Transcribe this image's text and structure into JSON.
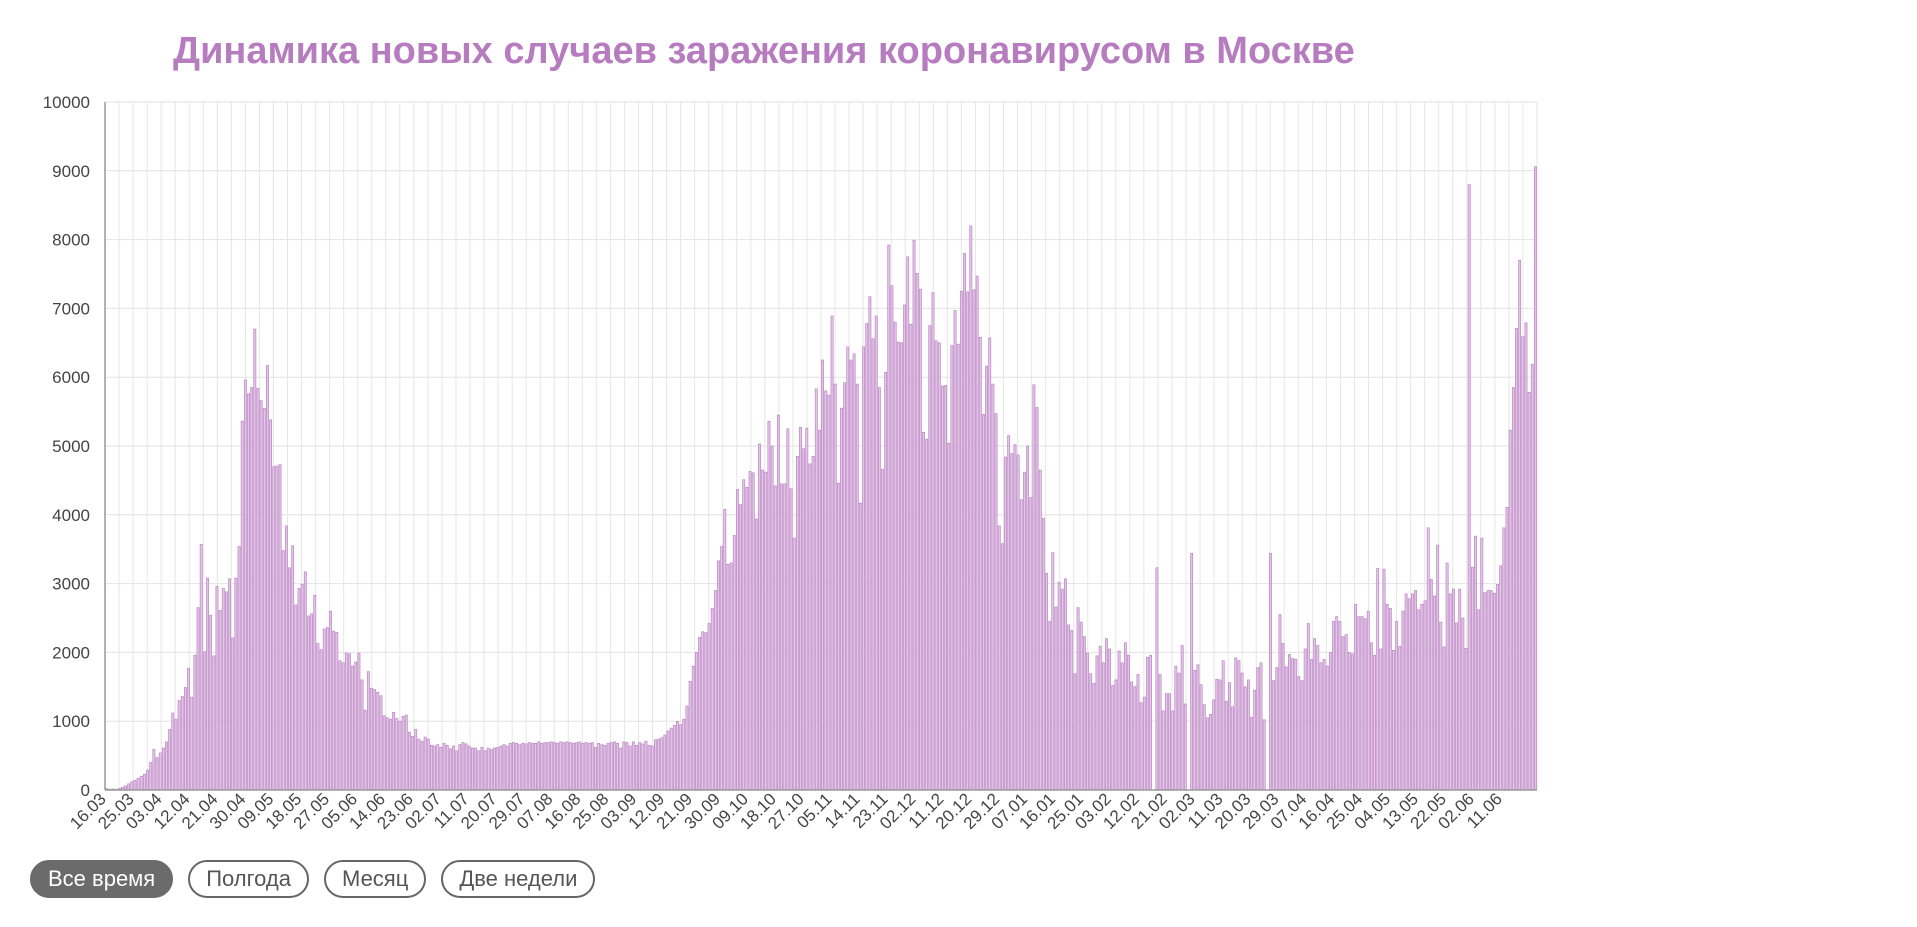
{
  "chart_data": {
    "type": "bar",
    "title": "Динамика новых случаев заражения коронавирусом в Москве",
    "xlabel": "",
    "ylabel": "",
    "ylim": [
      0,
      10000
    ],
    "y_ticks": [
      "0",
      "1000",
      "2000",
      "3000",
      "4000",
      "5000",
      "6000",
      "7000",
      "8000",
      "9000",
      "10000"
    ],
    "grid": true,
    "bar_color": "#b67cbf",
    "x_tick_labels": [
      "16.03",
      "25.03",
      "03.04",
      "12.04",
      "21.04",
      "30.04",
      "09.05",
      "18.05",
      "27.05",
      "05.06",
      "14.06",
      "23.06",
      "02.07",
      "11.07",
      "20.07",
      "29.07",
      "07.08",
      "16.08",
      "25.08",
      "03.09",
      "12.09",
      "21.09",
      "30.09",
      "09.10",
      "18.10",
      "27.10",
      "05.11",
      "14.11",
      "23.11",
      "02.12",
      "11.12",
      "20.12",
      "29.12",
      "07.01",
      "16.01",
      "25.01",
      "03.02",
      "12.02",
      "21.02",
      "02.03",
      "11.03",
      "20.03",
      "29.03",
      "07.04",
      "16.04",
      "25.04",
      "04.05",
      "13.05",
      "22.05",
      "02.06",
      "11.06"
    ],
    "series": [
      {
        "values": [
          20,
          12,
          15,
          10,
          25,
          40,
          60,
          90,
          120,
          140,
          170,
          200,
          230,
          290,
          400,
          590,
          470,
          540,
          610,
          700,
          880,
          1120,
          1030,
          1300,
          1360,
          1490,
          1770,
          1350,
          1960,
          2650,
          3570,
          2010,
          3080,
          2540,
          1950,
          2960,
          2610,
          2930,
          2880,
          3070,
          2210,
          3080,
          3540,
          5360,
          5960,
          5760,
          5850,
          6700,
          5840,
          5660,
          5550,
          6170,
          5380,
          4700,
          4710,
          4730,
          3480,
          3840,
          3230,
          3550,
          2690,
          2930,
          2990,
          3170,
          2530,
          2560,
          2830,
          2130,
          2040,
          2340,
          2360,
          2600,
          2310,
          2290,
          1880,
          1850,
          1990,
          1980,
          1800,
          1860,
          1990,
          1600,
          1160,
          1720,
          1480,
          1460,
          1420,
          1370,
          1080,
          1050,
          1030,
          1130,
          1040,
          1000,
          1070,
          1090,
          840,
          780,
          880,
          740,
          710,
          770,
          740,
          650,
          640,
          660,
          620,
          680,
          650,
          600,
          640,
          570,
          660,
          690,
          670,
          640,
          610,
          610,
          570,
          620,
          570,
          610,
          590,
          610,
          620,
          640,
          660,
          640,
          680,
          690,
          680,
          660,
          680,
          670,
          690,
          680,
          680,
          700,
          680,
          690,
          690,
          700,
          690,
          680,
          700,
          690,
          700,
          690,
          680,
          690,
          700,
          680,
          690,
          680,
          690,
          620,
          680,
          660,
          650,
          680,
          690,
          700,
          680,
          610,
          700,
          690,
          640,
          700,
          650,
          690,
          670,
          710,
          650,
          640,
          730,
          740,
          760,
          800,
          860,
          900,
          940,
          1000,
          950,
          1030,
          1220,
          1580,
          1800,
          2000,
          2220,
          2300,
          2290,
          2420,
          2640,
          2900,
          3330,
          3540,
          4080,
          3280,
          3300,
          3700,
          4370,
          4150,
          4510,
          4400,
          4630,
          4610,
          3940,
          5030,
          4650,
          4620,
          5360,
          5000,
          4420,
          5450,
          4450,
          4450,
          5250,
          4380,
          3660,
          4850,
          5270,
          4960,
          5260,
          4740,
          4850,
          5830,
          5230,
          6250,
          5800,
          5740,
          6890,
          5900,
          4460,
          5550,
          5920,
          6440,
          6250,
          6340,
          5900,
          4170,
          6440,
          6780,
          7170,
          6560,
          6890,
          5850,
          4660,
          6070,
          7920,
          7330,
          6800,
          6510,
          6500,
          7050,
          7750,
          6770,
          7990,
          7510,
          7280,
          5200,
          5100,
          6750,
          7230,
          6530,
          6500,
          5870,
          5880,
          5040,
          6460,
          6970,
          6480,
          7250,
          7800,
          7240,
          8200,
          7270,
          7470,
          6580,
          5460,
          6160,
          6570,
          5900,
          5470,
          3840,
          3580,
          4840,
          5150,
          4890,
          5020,
          4870,
          4220,
          4620,
          5000,
          4250,
          5890,
          5560,
          4650,
          3950,
          3150,
          2450,
          3450,
          2660,
          3020,
          2920,
          3070,
          2400,
          2320,
          1690,
          2650,
          2440,
          2230,
          1990,
          1690,
          1550,
          1950,
          2090,
          1850,
          2200,
          2050,
          1520,
          1600,
          2020,
          1850,
          2140,
          1960,
          1570,
          1500,
          1680,
          1270,
          1350,
          1930,
          1960,
          0,
          3230,
          1680,
          1150,
          1400,
          1400,
          1150,
          1800,
          1700,
          2100,
          1250,
          0,
          3440,
          1740,
          1820,
          1530,
          1240,
          1050,
          1100,
          1310,
          1610,
          1600,
          1880,
          1290,
          1560,
          1210,
          1920,
          1880,
          1700,
          1500,
          1600,
          1060,
          1450,
          1780,
          1850,
          1020,
          0,
          3440,
          1590,
          1780,
          2550,
          2130,
          1790,
          1970,
          1910,
          1900,
          1650,
          1590,
          2050,
          2420,
          1900,
          2200,
          2100,
          1850,
          1900,
          1800,
          2000,
          2450,
          2520,
          2450,
          2230,
          2260,
          2000,
          1980,
          2700,
          2520,
          2520,
          2490,
          2600,
          2140,
          1960,
          3220,
          2050,
          3210,
          2700,
          2640,
          2030,
          2450,
          2090,
          2600,
          2850,
          2780,
          2850,
          2900,
          2620,
          2700,
          2750,
          3810,
          3060,
          2820,
          3560,
          2440,
          2080,
          3300,
          2850,
          2920,
          2430,
          2920,
          2500,
          2060,
          8800,
          3240,
          3690,
          2620,
          3660,
          2870,
          2900,
          2900,
          2860,
          2990,
          3260,
          3810,
          4110,
          5230,
          5850,
          6710,
          7700,
          6590,
          6790,
          5780,
          6190,
          9060
        ]
      }
    ]
  },
  "range_buttons": [
    {
      "label": "Все время",
      "active": true
    },
    {
      "label": "Полгода",
      "active": false
    },
    {
      "label": "Месяц",
      "active": false
    },
    {
      "label": "Две недели",
      "active": false
    }
  ]
}
